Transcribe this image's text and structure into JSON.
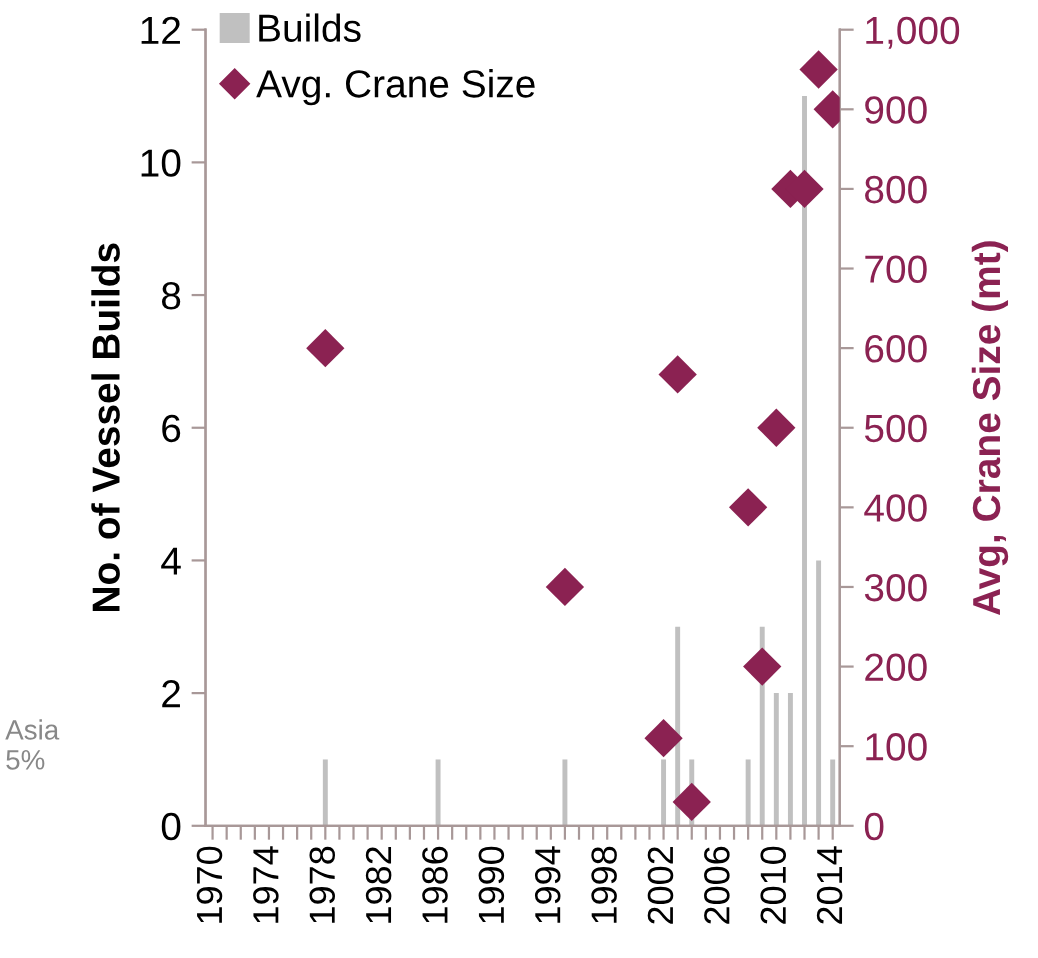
{
  "chart_data": {
    "type": "bar",
    "categories": [
      "1970",
      null,
      null,
      null,
      "1974",
      null,
      null,
      null,
      "1978",
      null,
      null,
      null,
      "1982",
      null,
      null,
      null,
      "1986",
      null,
      null,
      null,
      "1990",
      null,
      null,
      null,
      "1994",
      null,
      null,
      null,
      "1998",
      null,
      null,
      null,
      "2002",
      null,
      null,
      null,
      "2006",
      null,
      null,
      null,
      "2010",
      null,
      null,
      null,
      "2014"
    ],
    "series": [
      {
        "name": "Builds",
        "color": "#c0c0c0",
        "values": [
          0,
          0,
          0,
          0,
          0,
          0,
          0,
          0,
          1,
          0,
          0,
          0,
          0,
          0,
          0,
          0,
          1,
          0,
          0,
          0,
          0,
          0,
          0,
          0,
          0,
          1,
          0,
          0,
          0,
          0,
          0,
          0,
          1,
          3,
          1,
          0,
          0,
          0,
          1,
          3,
          2,
          2,
          11,
          4,
          1
        ]
      },
      {
        "name": "Avg. Crane Size",
        "type": "scatter",
        "axis": "y2",
        "color": "#8b2252",
        "marker": "diamond",
        "values": [
          null,
          null,
          null,
          null,
          null,
          null,
          null,
          null,
          600,
          null,
          null,
          null,
          null,
          null,
          null,
          null,
          null,
          null,
          null,
          null,
          null,
          null,
          null,
          null,
          null,
          300,
          null,
          null,
          null,
          null,
          null,
          null,
          110,
          567,
          30,
          null,
          null,
          null,
          400,
          200,
          500,
          800,
          800,
          950,
          900
        ]
      }
    ],
    "ylabel": "No. of Vessel Builds",
    "y2label": "Avg, Crane Size (mt)",
    "ylim": [
      0,
      12
    ],
    "yticks": [
      0,
      2,
      4,
      6,
      8,
      10,
      12
    ],
    "y2lim": [
      0,
      1000
    ],
    "y2ticks": [
      0,
      100,
      200,
      300,
      400,
      500,
      600,
      700,
      800,
      900,
      {
        "value": 1000,
        "label": "1,000"
      }
    ],
    "legend": "top left",
    "grid": false,
    "annotations": [
      "Asia\n5%"
    ]
  }
}
